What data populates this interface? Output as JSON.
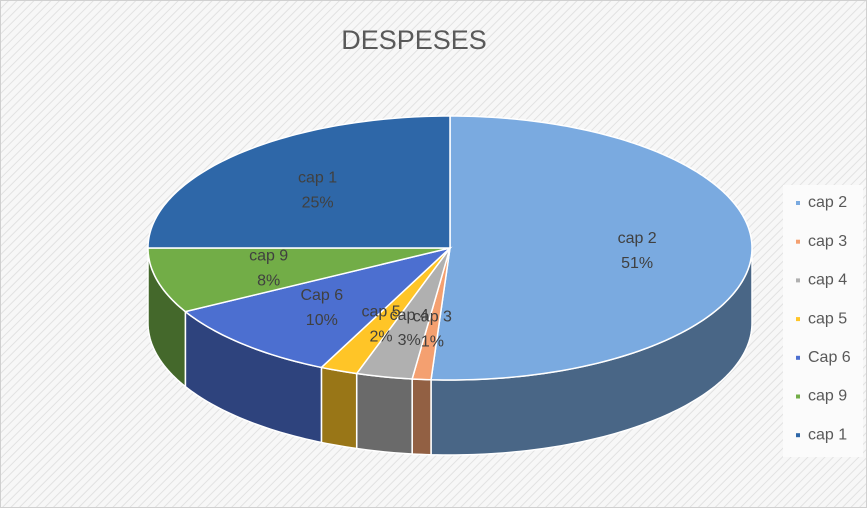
{
  "chart_data": {
    "type": "pie",
    "title": "DESPESES",
    "categories": [
      "cap 2",
      "cap 3",
      "cap 4",
      "cap 5",
      "Cap 6",
      "cap 9",
      "cap 1"
    ],
    "values": [
      51,
      1,
      3,
      2,
      10,
      8,
      25
    ],
    "value_labels": [
      "51%",
      "1%",
      "3%",
      "2%",
      "10%",
      "8%",
      "25%"
    ],
    "colors": [
      "#7aaae0",
      "#f4a070",
      "#b0b0b0",
      "#ffc527",
      "#4c6fd0",
      "#72ad47",
      "#2e67a8"
    ],
    "legend": "right"
  }
}
